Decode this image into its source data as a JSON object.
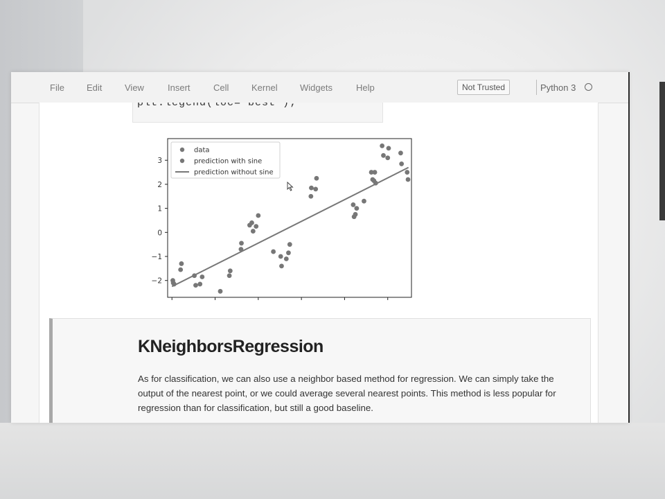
{
  "menu": {
    "items": [
      "File",
      "Edit",
      "View",
      "Insert",
      "Cell",
      "Kernel",
      "Widgets",
      "Help"
    ]
  },
  "trust_status": "Not Trusted",
  "kernel": {
    "name": "Python 3",
    "indicator_icon": "kernel-idle-circle-icon"
  },
  "code_cell": {
    "partial_line": "plt.legend(loc='best');"
  },
  "chart_data": {
    "type": "scatter",
    "xlim": [
      -3.1,
      2.55
    ],
    "ylim": [
      -2.7,
      3.9
    ],
    "xticks": [
      -3,
      -2,
      -1,
      0,
      1,
      2
    ],
    "yticks": [
      -2,
      -1,
      0,
      1,
      2,
      3
    ],
    "grid": false,
    "legend_position": "top-left",
    "series": [
      {
        "name": "data",
        "kind": "scatter",
        "color": "#777777",
        "points": [
          [
            -2.98,
            -2.0
          ],
          [
            -2.97,
            -2.1
          ],
          [
            -2.95,
            -2.15
          ],
          [
            -2.8,
            -1.55
          ],
          [
            -2.78,
            -1.3
          ],
          [
            -2.48,
            -1.8
          ],
          [
            -2.45,
            -2.2
          ],
          [
            -2.35,
            -2.15
          ],
          [
            -2.3,
            -1.85
          ],
          [
            -1.88,
            -2.45
          ],
          [
            -1.67,
            -1.8
          ],
          [
            -1.65,
            -1.6
          ],
          [
            -1.4,
            -0.7
          ],
          [
            -1.39,
            -0.45
          ],
          [
            -1.2,
            0.3
          ],
          [
            -1.15,
            0.4
          ],
          [
            -1.12,
            0.05
          ],
          [
            -1.05,
            0.25
          ],
          [
            -1.0,
            0.7
          ],
          [
            -0.65,
            -0.8
          ],
          [
            -0.48,
            -1.0
          ],
          [
            -0.46,
            -1.4
          ],
          [
            -0.35,
            -1.1
          ],
          [
            -0.3,
            -0.85
          ],
          [
            -0.27,
            -0.5
          ],
          [
            0.22,
            1.5
          ],
          [
            0.23,
            1.85
          ],
          [
            0.33,
            1.8
          ],
          [
            0.35,
            2.25
          ],
          [
            1.2,
            1.15
          ],
          [
            1.22,
            0.65
          ],
          [
            1.25,
            0.75
          ],
          [
            1.28,
            1.0
          ],
          [
            1.45,
            1.3
          ],
          [
            1.62,
            2.5
          ],
          [
            1.65,
            2.2
          ],
          [
            1.68,
            2.15
          ],
          [
            1.7,
            2.5
          ],
          [
            1.72,
            2.05
          ],
          [
            1.87,
            3.6
          ],
          [
            1.9,
            3.2
          ],
          [
            2.0,
            3.1
          ],
          [
            2.02,
            3.5
          ],
          [
            2.3,
            3.3
          ],
          [
            2.32,
            2.85
          ],
          [
            2.45,
            2.5
          ],
          [
            2.47,
            2.2
          ]
        ]
      },
      {
        "name": "prediction with sine",
        "kind": "scatter",
        "color": "#777777",
        "points": []
      },
      {
        "name": "prediction without sine",
        "kind": "line",
        "color": "#777777",
        "points": [
          [
            -3.0,
            -2.25
          ],
          [
            2.48,
            2.7
          ]
        ]
      }
    ]
  },
  "markdown_cell": {
    "heading": "KNeighborsRegression",
    "paragraph": "As for classification, we can also use a neighbor based method for regression. We can simply take the output of the nearest point, or we could average several nearest points. This method is less popular for regression than for classification, but still a good baseline."
  }
}
